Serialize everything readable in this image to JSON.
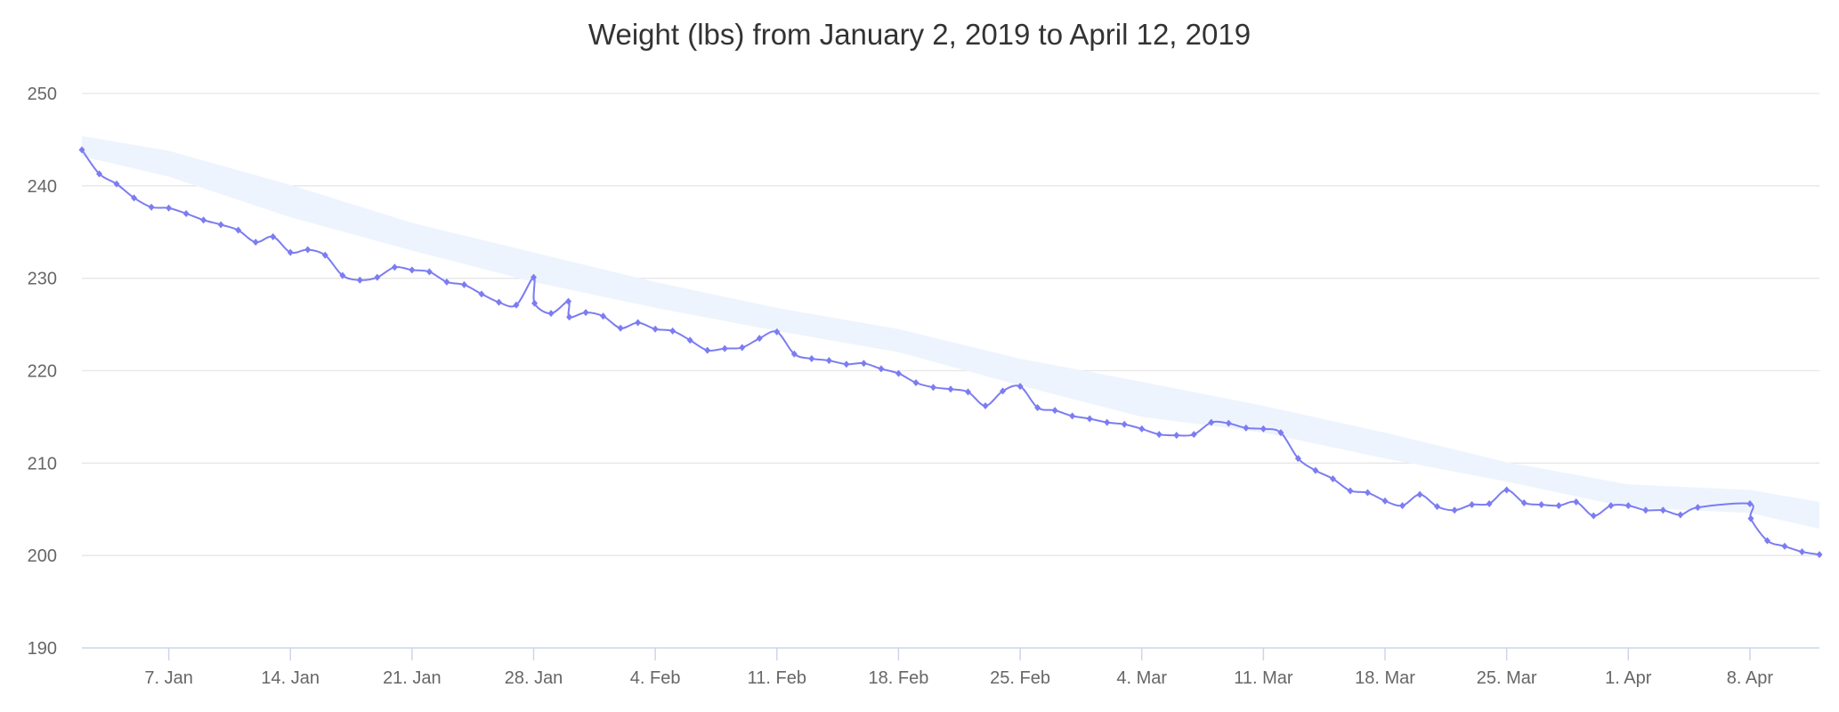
{
  "chart_data": {
    "type": "line",
    "title": "Weight (lbs) from January 2, 2019 to April 12, 2019",
    "xlabel": "",
    "ylabel": "",
    "ylim": [
      190,
      250
    ],
    "yticks": [
      190,
      200,
      210,
      220,
      230,
      240,
      250
    ],
    "xlim": [
      "2019-01-02",
      "2019-04-12"
    ],
    "xticks": [
      {
        "date": "2019-01-07",
        "label": "7. Jan"
      },
      {
        "date": "2019-01-14",
        "label": "14. Jan"
      },
      {
        "date": "2019-01-21",
        "label": "21. Jan"
      },
      {
        "date": "2019-01-28",
        "label": "28. Jan"
      },
      {
        "date": "2019-02-04",
        "label": "4. Feb"
      },
      {
        "date": "2019-02-11",
        "label": "11. Feb"
      },
      {
        "date": "2019-02-18",
        "label": "18. Feb"
      },
      {
        "date": "2019-02-25",
        "label": "25. Feb"
      },
      {
        "date": "2019-03-04",
        "label": "4. Mar"
      },
      {
        "date": "2019-03-11",
        "label": "11. Mar"
      },
      {
        "date": "2019-03-18",
        "label": "18. Mar"
      },
      {
        "date": "2019-03-25",
        "label": "25. Mar"
      },
      {
        "date": "2019-04-01",
        "label": "1. Apr"
      },
      {
        "date": "2019-04-08",
        "label": "8. Apr"
      }
    ],
    "grid": true,
    "legend": "none",
    "colors": {
      "line": "#7c7cf2",
      "band": "#eef4fe",
      "grid": "#e6e6e6",
      "axis": "#ccd6eb"
    },
    "series": [
      {
        "type": "line",
        "points": [
          [
            "2019-01-02",
            243.9
          ],
          [
            "2019-01-03",
            241.3
          ],
          [
            "2019-01-04",
            240.2
          ],
          [
            "2019-01-05",
            238.7
          ],
          [
            "2019-01-06",
            237.7
          ],
          [
            "2019-01-07",
            237.6
          ],
          [
            "2019-01-08",
            237.0
          ],
          [
            "2019-01-09",
            236.3
          ],
          [
            "2019-01-10",
            235.8
          ],
          [
            "2019-01-11",
            235.2
          ],
          [
            "2019-01-12",
            233.9
          ],
          [
            "2019-01-13",
            234.5
          ],
          [
            "2019-01-14",
            232.8
          ],
          [
            "2019-01-15",
            233.1
          ],
          [
            "2019-01-16",
            232.5
          ],
          [
            "2019-01-17",
            230.3
          ],
          [
            "2019-01-18",
            229.8
          ],
          [
            "2019-01-19",
            230.1
          ],
          [
            "2019-01-20",
            231.2
          ],
          [
            "2019-01-21",
            230.9
          ],
          [
            "2019-01-22",
            230.7
          ],
          [
            "2019-01-23",
            229.6
          ],
          [
            "2019-01-24",
            229.3
          ],
          [
            "2019-01-25",
            228.3
          ],
          [
            "2019-01-26",
            227.4
          ],
          [
            "2019-01-27",
            227.1
          ],
          [
            "2019-01-28",
            230.1
          ],
          [
            "2019-01-28",
            227.3
          ],
          [
            "2019-01-29",
            226.2
          ],
          [
            "2019-01-30",
            227.5
          ],
          [
            "2019-01-30",
            225.8
          ],
          [
            "2019-01-31",
            226.3
          ],
          [
            "2019-02-01",
            225.9
          ],
          [
            "2019-02-02",
            224.6
          ],
          [
            "2019-02-03",
            225.2
          ],
          [
            "2019-02-04",
            224.5
          ],
          [
            "2019-02-05",
            224.3
          ],
          [
            "2019-02-06",
            223.3
          ],
          [
            "2019-02-07",
            222.2
          ],
          [
            "2019-02-08",
            222.4
          ],
          [
            "2019-02-09",
            222.5
          ],
          [
            "2019-02-10",
            223.5
          ],
          [
            "2019-02-11",
            224.2
          ],
          [
            "2019-02-12",
            221.8
          ],
          [
            "2019-02-13",
            221.3
          ],
          [
            "2019-02-14",
            221.1
          ],
          [
            "2019-02-15",
            220.7
          ],
          [
            "2019-02-16",
            220.8
          ],
          [
            "2019-02-17",
            220.2
          ],
          [
            "2019-02-18",
            219.7
          ],
          [
            "2019-02-19",
            218.7
          ],
          [
            "2019-02-20",
            218.2
          ],
          [
            "2019-02-21",
            218.0
          ],
          [
            "2019-02-22",
            217.7
          ],
          [
            "2019-02-23",
            216.2
          ],
          [
            "2019-02-24",
            217.8
          ],
          [
            "2019-02-25",
            218.3
          ],
          [
            "2019-02-26",
            216.0
          ],
          [
            "2019-02-27",
            215.7
          ],
          [
            "2019-02-28",
            215.1
          ],
          [
            "2019-03-01",
            214.8
          ],
          [
            "2019-03-02",
            214.4
          ],
          [
            "2019-03-03",
            214.2
          ],
          [
            "2019-03-04",
            213.7
          ],
          [
            "2019-03-05",
            213.1
          ],
          [
            "2019-03-06",
            213.0
          ],
          [
            "2019-03-07",
            213.1
          ],
          [
            "2019-03-08",
            214.4
          ],
          [
            "2019-03-09",
            214.3
          ],
          [
            "2019-03-10",
            213.8
          ],
          [
            "2019-03-11",
            213.7
          ],
          [
            "2019-03-12",
            213.3
          ],
          [
            "2019-03-13",
            210.5
          ],
          [
            "2019-03-14",
            209.2
          ],
          [
            "2019-03-15",
            208.3
          ],
          [
            "2019-03-16",
            207.0
          ],
          [
            "2019-03-17",
            206.8
          ],
          [
            "2019-03-18",
            205.9
          ],
          [
            "2019-03-19",
            205.4
          ],
          [
            "2019-03-20",
            206.6
          ],
          [
            "2019-03-21",
            205.3
          ],
          [
            "2019-03-22",
            204.9
          ],
          [
            "2019-03-23",
            205.5
          ],
          [
            "2019-03-24",
            205.6
          ],
          [
            "2019-03-25",
            207.1
          ],
          [
            "2019-03-26",
            205.7
          ],
          [
            "2019-03-27",
            205.5
          ],
          [
            "2019-03-28",
            205.4
          ],
          [
            "2019-03-29",
            205.8
          ],
          [
            "2019-03-30",
            204.3
          ],
          [
            "2019-03-31",
            205.4
          ],
          [
            "2019-04-01",
            205.4
          ],
          [
            "2019-04-02",
            204.9
          ],
          [
            "2019-04-03",
            204.9
          ],
          [
            "2019-04-04",
            204.4
          ],
          [
            "2019-04-05",
            205.2
          ],
          [
            "2019-04-08",
            205.6
          ],
          [
            "2019-04-08",
            204.0
          ],
          [
            "2019-04-09",
            201.6
          ],
          [
            "2019-04-10",
            201.0
          ],
          [
            "2019-04-11",
            200.4
          ],
          [
            "2019-04-12",
            200.1
          ]
        ]
      },
      {
        "type": "arearange",
        "points": [
          [
            "2019-01-02",
            243.2,
            245.4
          ],
          [
            "2019-01-07",
            241.0,
            243.8
          ],
          [
            "2019-01-14",
            236.6,
            240.1
          ],
          [
            "2019-01-21",
            233.0,
            236.0
          ],
          [
            "2019-01-28",
            229.6,
            232.8
          ],
          [
            "2019-02-04",
            226.8,
            229.6
          ],
          [
            "2019-02-11",
            224.3,
            226.8
          ],
          [
            "2019-02-18",
            222.0,
            224.5
          ],
          [
            "2019-02-25",
            218.4,
            221.3
          ],
          [
            "2019-03-04",
            215.0,
            218.8
          ],
          [
            "2019-03-11",
            213.3,
            216.2
          ],
          [
            "2019-03-18",
            210.5,
            213.3
          ],
          [
            "2019-03-25",
            208.0,
            210.1
          ],
          [
            "2019-04-01",
            205.2,
            207.7
          ],
          [
            "2019-04-08",
            204.6,
            207.1
          ],
          [
            "2019-04-12",
            202.9,
            205.8
          ]
        ]
      }
    ]
  }
}
